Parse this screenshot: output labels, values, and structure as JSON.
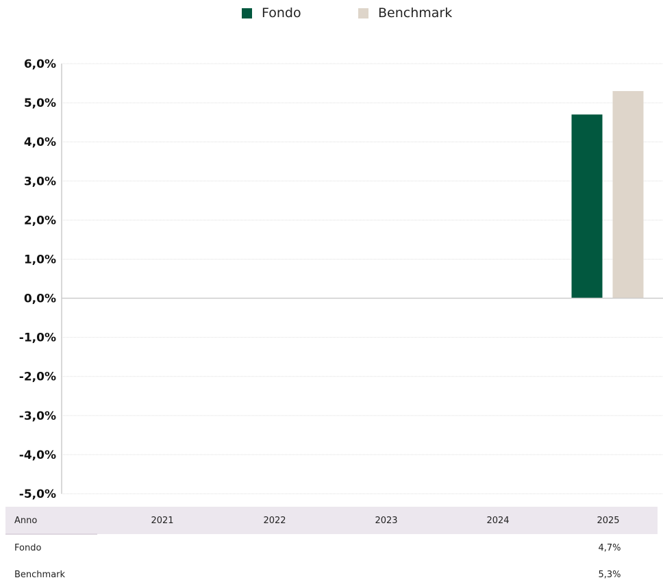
{
  "chart_data": {
    "type": "bar",
    "categories": [
      "2021",
      "2022",
      "2023",
      "2024",
      "2025"
    ],
    "series": [
      {
        "name": "Fondo",
        "values": [
          null,
          null,
          null,
          null,
          4.7
        ],
        "color": "#02583f"
      },
      {
        "name": "Benchmark",
        "values": [
          null,
          null,
          null,
          null,
          5.3
        ],
        "color": "#ded5ca"
      }
    ],
    "y_ticks": [
      "6,0%",
      "5,0%",
      "4,0%",
      "3,0%",
      "2,0%",
      "1,0%",
      "0,0%",
      "-1,0%",
      "-2,0%",
      "-3,0%",
      "-4,0%",
      "-5,0%"
    ],
    "ylim": [
      -5,
      6
    ],
    "grid": true,
    "legend_position": "top-center"
  },
  "table": {
    "header_label": "Anno",
    "years": [
      "2021",
      "2022",
      "2023",
      "2024",
      "2025"
    ],
    "rows": [
      {
        "label": "Fondo",
        "values": [
          "",
          "",
          "",
          "",
          "4,7%"
        ]
      },
      {
        "label": "Benchmark",
        "values": [
          "",
          "",
          "",
          "",
          "5,3%"
        ]
      }
    ]
  }
}
